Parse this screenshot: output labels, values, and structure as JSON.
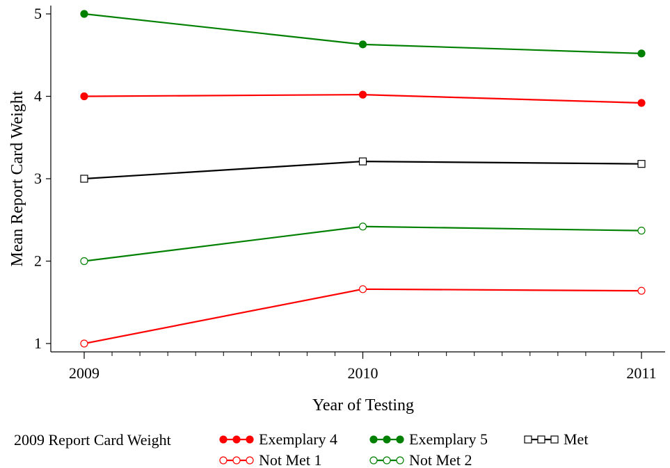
{
  "chart_data": {
    "type": "line",
    "title": "",
    "xlabel": "Year of Testing",
    "ylabel": "Mean Report Card Weight",
    "x": [
      2009,
      2010,
      2011
    ],
    "xlim": [
      2009,
      2011
    ],
    "ylim": [
      1,
      5
    ],
    "xticks": [
      "2009",
      "2010",
      "2011"
    ],
    "yticks": [
      "1",
      "2",
      "3",
      "4",
      "5"
    ],
    "grid": false,
    "legend": {
      "title": "2009 Report Card Weight",
      "placement": "bottom"
    },
    "series": [
      {
        "name": "Exemplary 4",
        "color": "#ff0000",
        "marker": "filled-circle",
        "values": [
          4.0,
          4.02,
          3.92
        ]
      },
      {
        "name": "Exemplary 5",
        "color": "#008000",
        "marker": "filled-circle",
        "values": [
          5.0,
          4.63,
          4.52
        ]
      },
      {
        "name": "Met",
        "color": "#000000",
        "marker": "open-square",
        "values": [
          3.0,
          3.21,
          3.18
        ]
      },
      {
        "name": "Not Met 1",
        "color": "#ff0000",
        "marker": "open-circle",
        "values": [
          1.0,
          1.66,
          1.64
        ]
      },
      {
        "name": "Not Met 2",
        "color": "#008000",
        "marker": "open-circle",
        "values": [
          2.0,
          2.42,
          2.37
        ]
      }
    ]
  }
}
